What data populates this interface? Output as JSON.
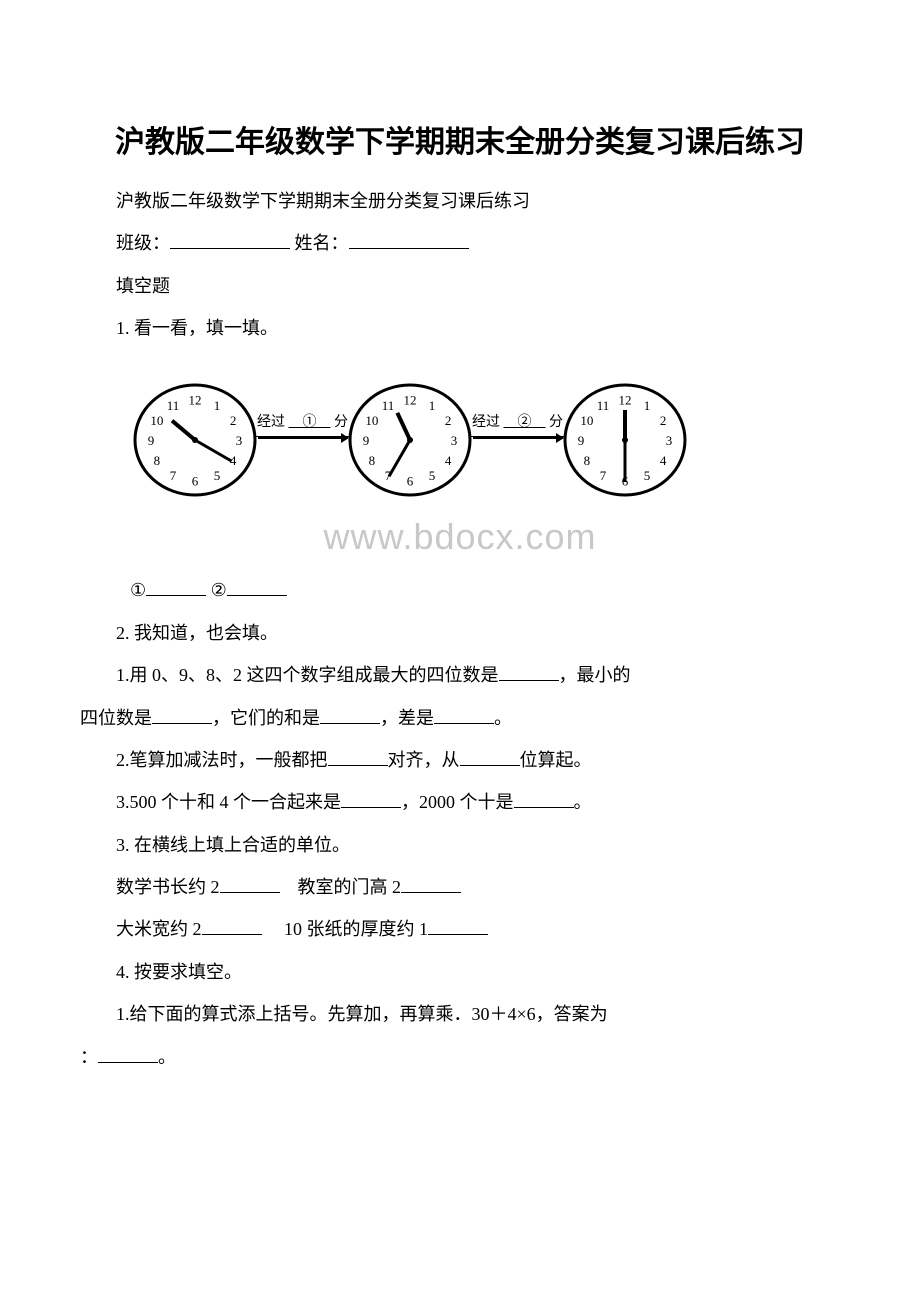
{
  "title": "沪教版二年级数学下学期期末全册分类复习课后练习",
  "subtitle": "沪教版二年级数学下学期期末全册分类复习课后练习",
  "form": {
    "class_label": "班级：",
    "name_label": "姓名："
  },
  "section_fill": "填空题",
  "q1": {
    "label": "1. 看一看，填一填。",
    "arrow1_prefix": "经过",
    "arrow1_circled": "①",
    "arrow1_suffix": "分",
    "arrow2_prefix": "经过",
    "arrow2_circled": "②",
    "arrow2_suffix": "分",
    "answer_circled1": "①",
    "answer_circled2": "②"
  },
  "q2": {
    "label": "2. 我知道，也会填。",
    "sub1_part1": "1.用 0、9、8、2 这四个数字组成最大的四位数是",
    "sub1_part2": "，最小的",
    "sub1_line2_part1": "四位数是",
    "sub1_line2_part2": "，它们的和是",
    "sub1_line2_part3": "，差是",
    "sub1_line2_part4": "。",
    "sub2_part1": "2.笔算加减法时，一般都把",
    "sub2_part2": "对齐，从",
    "sub2_part3": "位算起。",
    "sub3_part1": "3.500 个十和 4 个一合起来是",
    "sub3_part2": "，2000 个十是",
    "sub3_part3": "。"
  },
  "q3": {
    "label": "3. 在横线上填上合适的单位。",
    "line1_part1": "数学书长约 2",
    "line1_part2": "　教室的门高 2",
    "line2_part1": "大米宽约 2",
    "line2_part2": "　 10 张纸的厚度约 1"
  },
  "q4": {
    "label": "4. 按要求填空。",
    "sub1_part1": "1.给下面的算式添上括号。先算加，再算乘．30＋4×6，答案为",
    "sub1_line2_part1": "：",
    "sub1_line2_part2": "。"
  },
  "watermark": "www.bdocx.com",
  "clocks": {
    "numbers": [
      "12",
      "1",
      "2",
      "3",
      "4",
      "5",
      "6",
      "7",
      "8",
      "9",
      "10",
      "11"
    ],
    "clock1": {
      "hour_angle": -50,
      "minute_angle": 120
    },
    "clock2": {
      "hour_angle": -25,
      "minute_angle": 210
    },
    "clock3": {
      "hour_angle": 0,
      "minute_angle": 180
    }
  }
}
